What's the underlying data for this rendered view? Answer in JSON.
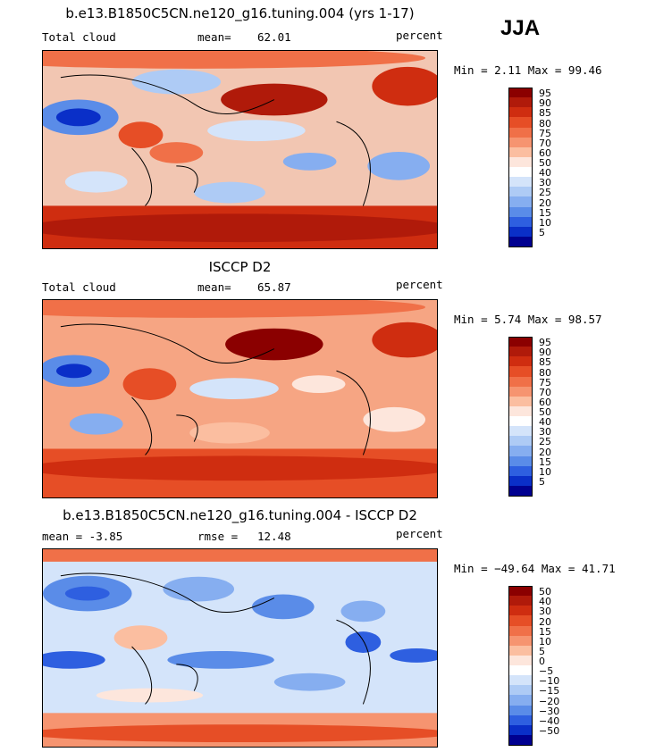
{
  "season": "JJA",
  "panels": [
    {
      "title": "b.e13.B1850C5CN.ne120_g16.tuning.004 (yrs 1-17)",
      "left_label": "Total cloud",
      "mean_label": "mean=",
      "mean_value": "62.01",
      "units": "percent",
      "minmax": "Min =    2.11 Max =   99.46"
    },
    {
      "title": "ISCCP D2",
      "left_label": "Total cloud",
      "mean_label": "mean=",
      "mean_value": "65.87",
      "units": "percent",
      "minmax": "Min =    5.74 Max =   98.57"
    },
    {
      "title": "b.e13.B1850C5CN.ne120_g16.tuning.004 - ISCCP D2",
      "left_label": "mean =   -3.85",
      "mean_label": "rmse =",
      "mean_value": "12.48",
      "units": "percent",
      "minmax": "Min = −49.64 Max =   41.71"
    }
  ],
  "chart_data": [
    {
      "type": "heatmap",
      "title": "b.e13.B1850C5CN.ne120_g16.tuning.004 (yrs 1-17)",
      "variable": "Total cloud",
      "units": "percent",
      "mean": 62.01,
      "min": 2.11,
      "max": 99.46,
      "colorbar_levels": [
        "95",
        "90",
        "85",
        "80",
        "75",
        "70",
        "60",
        "50",
        "40",
        "30",
        "25",
        "20",
        "15",
        "10",
        "5"
      ],
      "colorbar_colors": [
        "#8b0000",
        "#b01a0a",
        "#cf2d10",
        "#e64e26",
        "#f07048",
        "#f69470",
        "#fbbea0",
        "#fde6dc",
        "#ffffff",
        "#d4e4fa",
        "#aecbf5",
        "#86aef0",
        "#5a8ce8",
        "#2e5fe0",
        "#0a2fc8",
        "#000090"
      ]
    },
    {
      "type": "heatmap",
      "title": "ISCCP D2",
      "variable": "Total cloud",
      "units": "percent",
      "mean": 65.87,
      "min": 5.74,
      "max": 98.57,
      "colorbar_levels": [
        "95",
        "90",
        "85",
        "80",
        "75",
        "70",
        "60",
        "50",
        "40",
        "30",
        "25",
        "20",
        "15",
        "10",
        "5"
      ],
      "colorbar_colors": [
        "#8b0000",
        "#b01a0a",
        "#cf2d10",
        "#e64e26",
        "#f07048",
        "#f69470",
        "#fbbea0",
        "#fde6dc",
        "#ffffff",
        "#d4e4fa",
        "#aecbf5",
        "#86aef0",
        "#5a8ce8",
        "#2e5fe0",
        "#0a2fc8",
        "#000090"
      ]
    },
    {
      "type": "heatmap",
      "title": "b.e13.B1850C5CN.ne120_g16.tuning.004 - ISCCP D2",
      "units": "percent",
      "mean": -3.85,
      "rmse": 12.48,
      "min": -49.64,
      "max": 41.71,
      "colorbar_levels": [
        "50",
        "40",
        "30",
        "20",
        "15",
        "10",
        "5",
        "0",
        "−5",
        "−10",
        "−15",
        "−20",
        "−30",
        "−40",
        "−50"
      ],
      "colorbar_colors": [
        "#8b0000",
        "#b01a0a",
        "#cf2d10",
        "#e64e26",
        "#f07048",
        "#f69470",
        "#fbbea0",
        "#fde6dc",
        "#ffffff",
        "#d4e4fa",
        "#aecbf5",
        "#86aef0",
        "#5a8ce8",
        "#2e5fe0",
        "#0a2fc8",
        "#000090"
      ]
    }
  ]
}
